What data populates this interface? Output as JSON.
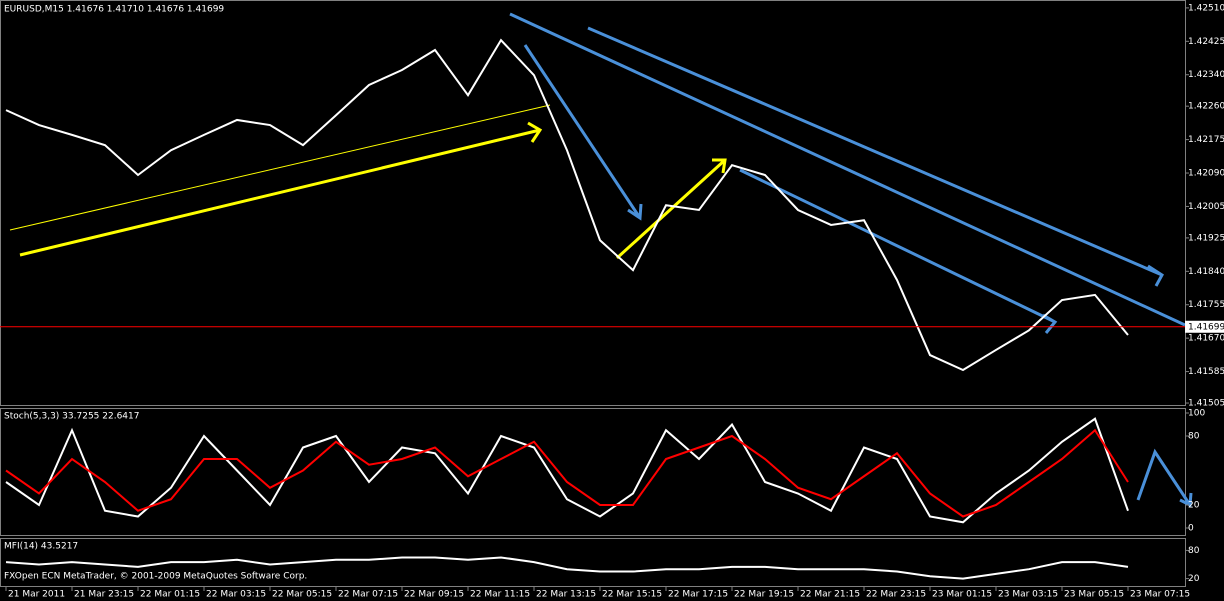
{
  "chart_data": [
    {
      "type": "line",
      "title": "EURUSD,M15  1.41676 1.41710 1.41676 1.41699",
      "categories": [
        "21 Mar 2011",
        null,
        "21 Mar 23:15",
        null,
        "22 Mar 01:15",
        null,
        "22 Mar 03:15",
        null,
        "22 Mar 05:15",
        null,
        "22 Mar 07:15",
        null,
        "22 Mar 09:15",
        null,
        "22 Mar 11:15",
        null,
        "22 Mar 13:15",
        null,
        "22 Mar 15:15",
        null,
        "22 Mar 17:15",
        null,
        "22 Mar 19:15",
        null,
        "22 Mar 21:15",
        null,
        "22 Mar 23:15",
        null,
        "23 Mar 01:15",
        null,
        "23 Mar 03:15",
        null,
        "23 Mar 05:15",
        null,
        "23 Mar 07:15"
      ],
      "values": [
        1.4225,
        1.42212,
        1.42187,
        1.42161,
        1.42085,
        1.42148,
        1.42187,
        1.42225,
        1.42212,
        1.42161,
        1.42237,
        1.42314,
        1.42352,
        1.42403,
        1.42288,
        1.42428,
        1.42339,
        1.42148,
        1.41919,
        1.41843,
        1.42008,
        1.41996,
        1.4211,
        1.42085,
        1.41996,
        1.41958,
        1.4197,
        1.41818,
        1.41627,
        1.41589,
        1.4164,
        1.4169,
        1.41767,
        1.4178,
        1.41678
      ],
      "color": "#ffffff",
      "ylim": [
        1.415,
        1.42525
      ],
      "yticks": [
        {
          "value": 1.4251,
          "label": "1.42510"
        },
        1.42425,
        {
          "value": 1.4234,
          "label": "1.42340"
        },
        {
          "value": 1.4226,
          "label": "1.42260"
        },
        1.42175,
        {
          "value": 1.4209,
          "label": "1.42090"
        },
        1.42005,
        1.41925,
        {
          "value": 1.4184,
          "label": "1.41840"
        },
        1.41755,
        {
          "value": 1.4167,
          "label": "1.41670"
        },
        1.41585,
        1.41505
      ],
      "last_price": 1.41699,
      "last_price_color": "#ff0000"
    },
    {
      "type": "line",
      "title": "Stoch(5,3,3) 33.7255 22.6417",
      "series": [
        {
          "color": "#ffffff",
          "values": [
            40,
            20,
            85,
            15,
            10,
            35,
            80,
            50,
            20,
            70,
            80,
            40,
            70,
            65,
            30,
            80,
            70,
            25,
            10,
            30,
            85,
            60,
            90,
            40,
            30,
            15,
            70,
            60,
            10,
            5,
            30,
            50,
            75,
            95,
            15
          ]
        },
        {
          "color": "#ff0000",
          "values": [
            50,
            30,
            60,
            40,
            15,
            25,
            60,
            60,
            35,
            50,
            75,
            55,
            60,
            70,
            45,
            60,
            75,
            40,
            20,
            20,
            60,
            70,
            80,
            60,
            35,
            25,
            45,
            65,
            30,
            10,
            20,
            40,
            60,
            85,
            40
          ]
        }
      ],
      "ylim": [
        0,
        100
      ],
      "yticks": [
        0,
        20,
        80,
        100
      ]
    },
    {
      "type": "line",
      "title": "MFI(14) 43.5217",
      "values": [
        55,
        50,
        55,
        50,
        45,
        55,
        55,
        60,
        50,
        55,
        60,
        60,
        65,
        65,
        60,
        65,
        55,
        40,
        35,
        35,
        40,
        40,
        45,
        45,
        40,
        40,
        40,
        35,
        25,
        20,
        30,
        40,
        55,
        55,
        45
      ],
      "color": "#ffffff",
      "ylim": [
        0,
        100
      ],
      "yticks": [
        20,
        80
      ]
    }
  ],
  "footer": "FXOpen ECN MetaTrader, © 2001-2009 MetaQuotes Software Corp."
}
